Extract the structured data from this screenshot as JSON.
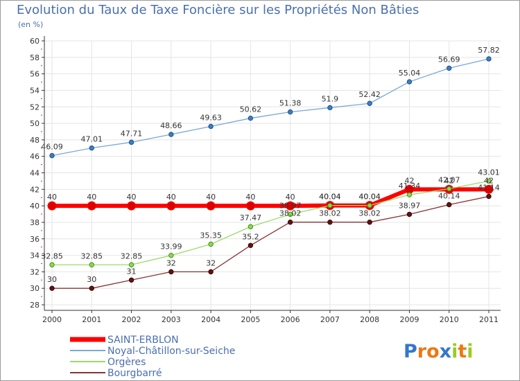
{
  "chart_data": {
    "type": "line",
    "title": "Evolution du Taux de Taxe Foncière sur les Propriétés Non Bâties",
    "ylabel": "(en %)",
    "xlabel": "",
    "x": [
      "2000",
      "2001",
      "2002",
      "2003",
      "2004",
      "2005",
      "2006",
      "2007",
      "2008",
      "2009",
      "2010",
      "2011"
    ],
    "ylim": [
      28,
      60
    ],
    "yticks": [
      28,
      30,
      32,
      34,
      36,
      38,
      40,
      42,
      44,
      46,
      48,
      50,
      52,
      54,
      56,
      58,
      60
    ],
    "grid": true,
    "legend_position": "bottom-left",
    "series": [
      {
        "name": "SAINT-ERBLON",
        "color": "#ff0000",
        "values": [
          40,
          40,
          40,
          40,
          40,
          40,
          40,
          40.04,
          40.04,
          42,
          42,
          42
        ],
        "labels": [
          "40",
          "40",
          "40",
          "40",
          "40",
          "40",
          "40",
          "40.04",
          "40.04",
          "42",
          "42",
          "42"
        ]
      },
      {
        "name": "Noyal-Châtillon-sur-Seiche",
        "color": "#7aa7d8",
        "values": [
          46.09,
          47.01,
          47.71,
          48.66,
          49.63,
          50.62,
          51.38,
          51.9,
          52.42,
          55.04,
          56.69,
          57.82
        ],
        "labels": [
          "46.09",
          "47.01",
          "47.71",
          "48.66",
          "49.63",
          "50.62",
          "51.38",
          "51.9",
          "52.42",
          "55.04",
          "56.69",
          "57.82"
        ]
      },
      {
        "name": "Orgères",
        "color": "#99dd66",
        "values": [
          32.85,
          32.85,
          32.85,
          33.99,
          35.35,
          37.47,
          38.97,
          40.04,
          40.04,
          41.34,
          42.07,
          43.01
        ],
        "labels": [
          "32.85",
          "32.85",
          "32.85",
          "33.99",
          "35.35",
          "37.47",
          "38.97",
          "40.04",
          "40.04",
          "41.34",
          "42.07",
          "43.01"
        ]
      },
      {
        "name": "Bourgbarré",
        "color": "#883333",
        "values": [
          30,
          30,
          31,
          32,
          32,
          35.2,
          38.02,
          38.02,
          38.02,
          38.97,
          40.14,
          41.14
        ],
        "labels": [
          "30",
          "30",
          "31",
          "32",
          "32",
          "35.2",
          "38.02",
          "38.02",
          "38.02",
          "38.97",
          "40.14",
          "41.14"
        ]
      }
    ]
  },
  "logo": {
    "text": "Proxiti",
    "letters": [
      "P",
      "r",
      "o",
      "x",
      "i",
      "t",
      "i"
    ],
    "colors": [
      "#3377cc",
      "#ee7711",
      "#ee7711",
      "#3377cc",
      "#99cc22",
      "#ee7711",
      "#99cc22"
    ]
  }
}
